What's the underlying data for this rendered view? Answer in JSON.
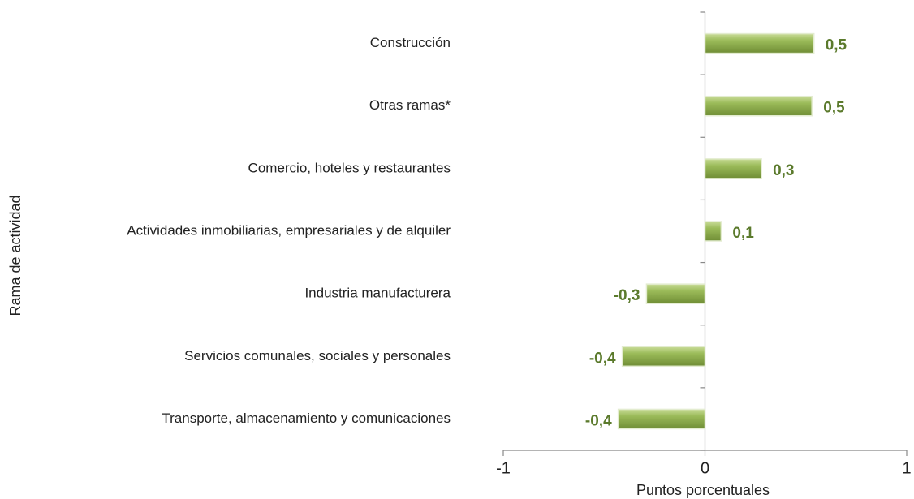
{
  "chart_data": {
    "type": "bar",
    "orientation": "horizontal",
    "categories": [
      "Construcción",
      "Otras ramas*",
      "Comercio, hoteles y restaurantes",
      "Actividades inmobiliarias, empresariales y de alquiler",
      "Industria manufacturera",
      "Servicios comunales, sociales y personales",
      "Transporte, almacenamiento y comunicaciones"
    ],
    "values": [
      0.54,
      0.53,
      0.28,
      0.08,
      -0.29,
      -0.41,
      -0.43
    ],
    "value_labels": [
      "0,5",
      "0,5",
      "0,3",
      "0,1",
      "-0,3",
      "-0,4",
      "-0,4"
    ],
    "color": "#9bbb59",
    "xlim": [
      -1,
      1
    ],
    "xticks": [
      -1,
      0,
      1
    ],
    "xlabel": "Puntos porcentuales",
    "ylabel": "Rama de actividad"
  }
}
